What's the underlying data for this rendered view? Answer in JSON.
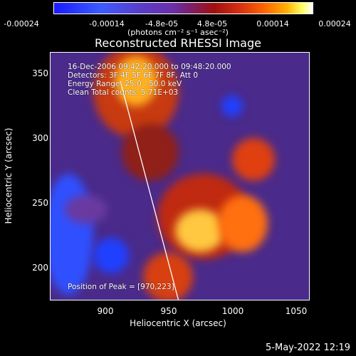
{
  "colorbar": {
    "ticks": [
      "-0.00024",
      "-0.00014",
      "-4.8e-05",
      "4.8e-05",
      "0.00014",
      "0.00024"
    ],
    "units": "(photons cm⁻² s⁻¹ asec⁻²)"
  },
  "image": {
    "title": "Reconstructed RHESSI Image",
    "info_line1": "16-Dec-2006 09:42:20.000 to 09:48:20.000",
    "info_line2": "Detectors: 3F 4F 5F 6F 7F 8F, Att 0",
    "info_line3": "Energy Range: 25.0 - 50.0 keV",
    "info_line4": "Clean      Total counts: 5.71E+03",
    "peak": "Position of Peak = [970,223]"
  },
  "axes": {
    "xlabel": "Heliocentric X (arcsec)",
    "ylabel": "Heliocentric Y (arcsec)",
    "xticks": [
      "900",
      "950",
      "1000",
      "1050"
    ],
    "yticks": [
      "350",
      "300",
      "250",
      "200"
    ],
    "xlim": [
      863,
      1065
    ],
    "ylim": [
      172,
      365
    ]
  },
  "footer": {
    "date": "5-May-2022 12:19"
  }
}
